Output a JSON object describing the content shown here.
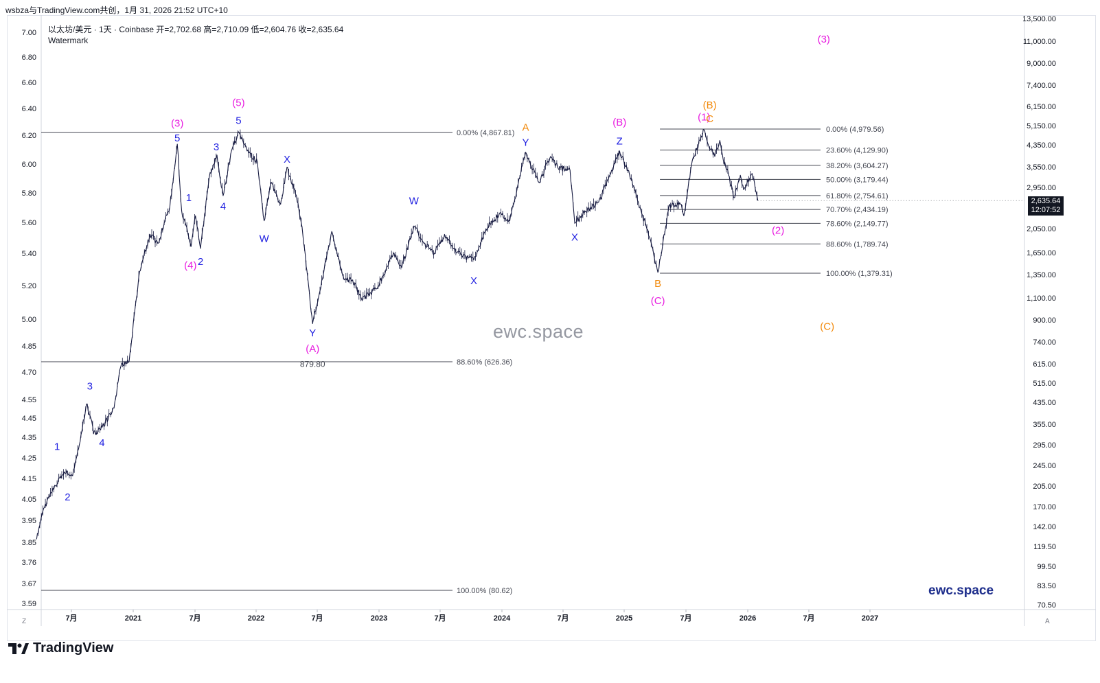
{
  "header": {
    "title": "wsbza与TradingView.com共创，1月 31, 2026 21:52 UTC+10"
  },
  "symbol_info": {
    "text": "以太坊/美元 · 1天 · Coinbase  开=2,702.68  高=2,710.09  低=2,604.76  收=2,635.64",
    "watermark_label": "Watermark"
  },
  "price_badge": {
    "price": "2,635.64",
    "countdown": "12:07:52"
  },
  "watermarks": {
    "center": "ewc.space",
    "brand": "ewc.space"
  },
  "footer": {
    "logo_text": "TradingView",
    "left_corner": "Z",
    "right_corner": "A"
  },
  "colors": {
    "blue": "#1f1fe0",
    "magenta": "#e81ce0",
    "orange": "#f28a0c",
    "candle": "#161a40",
    "fib_line": "#434651"
  },
  "chart_data": {
    "type": "line",
    "title": "以太坊/美元 · 1天 · Coinbase",
    "scale": "log",
    "left_axis_ticks": [
      "7.00",
      "6.80",
      "6.60",
      "6.40",
      "6.20",
      "6.00",
      "5.80",
      "5.60",
      "5.40",
      "5.20",
      "5.00",
      "4.85",
      "4.70",
      "4.55",
      "4.45",
      "4.35",
      "4.25",
      "4.15",
      "4.05",
      "3.95",
      "3.85",
      "3.76",
      "3.67",
      "3.59"
    ],
    "right_axis_ticks": [
      "13,500.00",
      "11,000.00",
      "9,000.00",
      "7,400.00",
      "6,150.00",
      "5,150.00",
      "4,350.00",
      "3,550.00",
      "2,950.00",
      "2,050.00",
      "1,650.00",
      "1,350.00",
      "1,100.00",
      "900.00",
      "740.00",
      "615.00",
      "515.00",
      "435.00",
      "355.00",
      "295.00",
      "245.00",
      "205.00",
      "170.00",
      "142.00",
      "119.50",
      "99.50",
      "83.50",
      "70.50"
    ],
    "x_ticks": [
      "7月",
      "2021",
      "7月",
      "2022",
      "7月",
      "2023",
      "7月",
      "2024",
      "7月",
      "2025",
      "7月",
      "2026",
      "7月",
      "2027"
    ],
    "price_series": {
      "name": "ETH/USD",
      "points": [
        [
          "2020-03-20",
          129
        ],
        [
          "2020-04-10",
          170
        ],
        [
          "2020-05-15",
          208
        ],
        [
          "2020-06-10",
          235
        ],
        [
          "2020-07-05",
          227
        ],
        [
          "2020-07-25",
          300
        ],
        [
          "2020-08-15",
          430
        ],
        [
          "2020-08-28",
          380
        ],
        [
          "2020-09-05",
          330
        ],
        [
          "2020-10-01",
          350
        ],
        [
          "2020-11-05",
          415
        ],
        [
          "2020-11-25",
          600
        ],
        [
          "2020-12-20",
          630
        ],
        [
          "2021-01-20",
          1400
        ],
        [
          "2021-02-20",
          1950
        ],
        [
          "2021-03-15",
          1800
        ],
        [
          "2021-04-20",
          2500
        ],
        [
          "2021-05-12",
          4350
        ],
        [
          "2021-05-25",
          2400
        ],
        [
          "2021-06-22",
          1750
        ],
        [
          "2021-07-05",
          2300
        ],
        [
          "2021-07-20",
          1720
        ],
        [
          "2021-08-15",
          3250
        ],
        [
          "2021-09-07",
          3950
        ],
        [
          "2021-09-25",
          2750
        ],
        [
          "2021-10-20",
          4100
        ],
        [
          "2021-11-10",
          4860
        ],
        [
          "2021-12-05",
          4100
        ],
        [
          "2022-01-05",
          3700
        ],
        [
          "2022-01-25",
          2200
        ],
        [
          "2022-02-15",
          3100
        ],
        [
          "2022-03-15",
          2550
        ],
        [
          "2022-04-03",
          3550
        ],
        [
          "2022-05-01",
          2750
        ],
        [
          "2022-05-20",
          1950
        ],
        [
          "2022-06-18",
          880
        ],
        [
          "2022-07-05",
          1100
        ],
        [
          "2022-08-14",
          2000
        ],
        [
          "2022-09-20",
          1300
        ],
        [
          "2022-10-15",
          1300
        ],
        [
          "2022-11-10",
          1100
        ],
        [
          "2022-12-25",
          1200
        ],
        [
          "2023-02-15",
          1650
        ],
        [
          "2023-03-10",
          1450
        ],
        [
          "2023-04-15",
          2100
        ],
        [
          "2023-05-15",
          1800
        ],
        [
          "2023-06-15",
          1650
        ],
        [
          "2023-07-15",
          1950
        ],
        [
          "2023-08-20",
          1650
        ],
        [
          "2023-10-10",
          1550
        ],
        [
          "2023-11-15",
          2050
        ],
        [
          "2023-12-25",
          2350
        ],
        [
          "2024-01-25",
          2200
        ],
        [
          "2024-03-12",
          4050
        ],
        [
          "2024-04-20",
          3100
        ],
        [
          "2024-05-25",
          3900
        ],
        [
          "2024-06-15",
          3550
        ],
        [
          "2024-07-22",
          3450
        ],
        [
          "2024-08-05",
          2150
        ],
        [
          "2024-09-05",
          2400
        ],
        [
          "2024-10-15",
          2600
        ],
        [
          "2024-11-20",
          3350
        ],
        [
          "2024-12-16",
          4100
        ],
        [
          "2025-01-15",
          3300
        ],
        [
          "2025-02-10",
          2600
        ],
        [
          "2025-03-15",
          1900
        ],
        [
          "2025-04-09",
          1390
        ],
        [
          "2025-05-12",
          2500
        ],
        [
          "2025-06-15",
          2550
        ],
        [
          "2025-06-25",
          2300
        ],
        [
          "2025-07-20",
          3750
        ],
        [
          "2025-08-24",
          4950
        ],
        [
          "2025-09-05",
          4350
        ],
        [
          "2025-09-25",
          3900
        ],
        [
          "2025-10-10",
          4500
        ],
        [
          "2025-10-20",
          3800
        ],
        [
          "2025-11-05",
          3300
        ],
        [
          "2025-11-21",
          2700
        ],
        [
          "2025-12-10",
          3300
        ],
        [
          "2025-12-20",
          2900
        ],
        [
          "2026-01-14",
          3350
        ],
        [
          "2026-01-31",
          2635
        ]
      ]
    },
    "fib_sets": [
      {
        "start": "2020-03-20",
        "end": "2022-09-01",
        "levels": [
          {
            "label": "0.00% (4,867.81)",
            "value": 4867.81
          },
          {
            "label": "88.60% (626.36)",
            "value": 626.36
          },
          {
            "label": "100.00% (80.62)",
            "value": 80.62
          }
        ]
      },
      {
        "start": "2025-04-15",
        "end": "2025-12-25",
        "levels": [
          {
            "label": "0.00% (4,979.56)",
            "value": 4979.56
          },
          {
            "label": "23.60% (4,129.90)",
            "value": 4129.9
          },
          {
            "label": "38.20% (3,604.27)",
            "value": 3604.27
          },
          {
            "label": "50.00% (3,179.44)",
            "value": 3179.44
          },
          {
            "label": "61.80% (2,754.61)",
            "value": 2754.61
          },
          {
            "label": "70.70% (2,434.19)",
            "value": 2434.19
          },
          {
            "label": "78.60% (2,149.77)",
            "value": 2149.77
          },
          {
            "label": "88.60% (1,789.74)",
            "value": 1789.74
          },
          {
            "label": "100.00% (1,379.31)",
            "value": 1379.31
          }
        ]
      }
    ],
    "annotations": [
      {
        "text": "1",
        "date": "2020-05-20",
        "price": 295,
        "color": "blue"
      },
      {
        "text": "2",
        "date": "2020-06-20",
        "price": 188,
        "color": "blue"
      },
      {
        "text": "3",
        "date": "2020-08-25",
        "price": 505,
        "color": "blue"
      },
      {
        "text": "4",
        "date": "2020-09-30",
        "price": 305,
        "color": "blue"
      },
      {
        "text": "5",
        "date": "2021-05-12",
        "price": 4600,
        "color": "blue"
      },
      {
        "text": "(3)",
        "date": "2021-05-12",
        "price": 5250,
        "color": "magenta"
      },
      {
        "text": "1",
        "date": "2021-06-15",
        "price": 2700,
        "color": "blue"
      },
      {
        "text": "(4)",
        "date": "2021-06-20",
        "price": 1480,
        "color": "magenta"
      },
      {
        "text": "2",
        "date": "2021-07-20",
        "price": 1530,
        "color": "blue"
      },
      {
        "text": "3",
        "date": "2021-09-05",
        "price": 4250,
        "color": "blue"
      },
      {
        "text": "4",
        "date": "2021-09-25",
        "price": 2500,
        "color": "blue"
      },
      {
        "text": "5",
        "date": "2021-11-10",
        "price": 5380,
        "color": "blue"
      },
      {
        "text": "(5)",
        "date": "2021-11-10",
        "price": 6300,
        "color": "magenta"
      },
      {
        "text": "X",
        "date": "2022-04-03",
        "price": 3800,
        "color": "blue"
      },
      {
        "text": "W",
        "date": "2022-01-25",
        "price": 1880,
        "color": "blue"
      },
      {
        "text": "Y",
        "date": "2022-06-18",
        "price": 810,
        "color": "blue"
      },
      {
        "text": "(A)",
        "date": "2022-06-18",
        "price": 705,
        "color": "magenta"
      },
      {
        "text": "879.80",
        "date": "2022-06-18",
        "price": 618,
        "color": "dark"
      },
      {
        "text": "W",
        "date": "2023-04-15",
        "price": 2630,
        "color": "blue"
      },
      {
        "text": "X",
        "date": "2023-10-10",
        "price": 1290,
        "color": "blue"
      },
      {
        "text": "A",
        "date": "2024-03-12",
        "price": 5050,
        "color": "orange"
      },
      {
        "text": "Y",
        "date": "2024-03-12",
        "price": 4420,
        "color": "blue"
      },
      {
        "text": "X",
        "date": "2024-08-05",
        "price": 1900,
        "color": "blue"
      },
      {
        "text": "(B)",
        "date": "2024-12-16",
        "price": 5300,
        "color": "magenta"
      },
      {
        "text": "Z",
        "date": "2024-12-16",
        "price": 4470,
        "color": "blue"
      },
      {
        "text": "B",
        "date": "2025-04-09",
        "price": 1260,
        "color": "orange"
      },
      {
        "text": "(C)",
        "date": "2025-04-09",
        "price": 1080,
        "color": "magenta"
      },
      {
        "text": "(1)",
        "date": "2025-08-24",
        "price": 5550,
        "color": "magenta"
      },
      {
        "text": "C",
        "date": "2025-09-10",
        "price": 5450,
        "color": "orange"
      },
      {
        "text": "(B)",
        "date": "2025-09-10",
        "price": 6170,
        "color": "orange"
      },
      {
        "text": "(3)",
        "date": "2026-08-15",
        "price": 11100,
        "color": "magenta"
      },
      {
        "text": "(2)",
        "date": "2026-04-01",
        "price": 2020,
        "color": "magenta"
      },
      {
        "text": "(C)",
        "date": "2026-08-25",
        "price": 860,
        "color": "orange"
      }
    ]
  }
}
